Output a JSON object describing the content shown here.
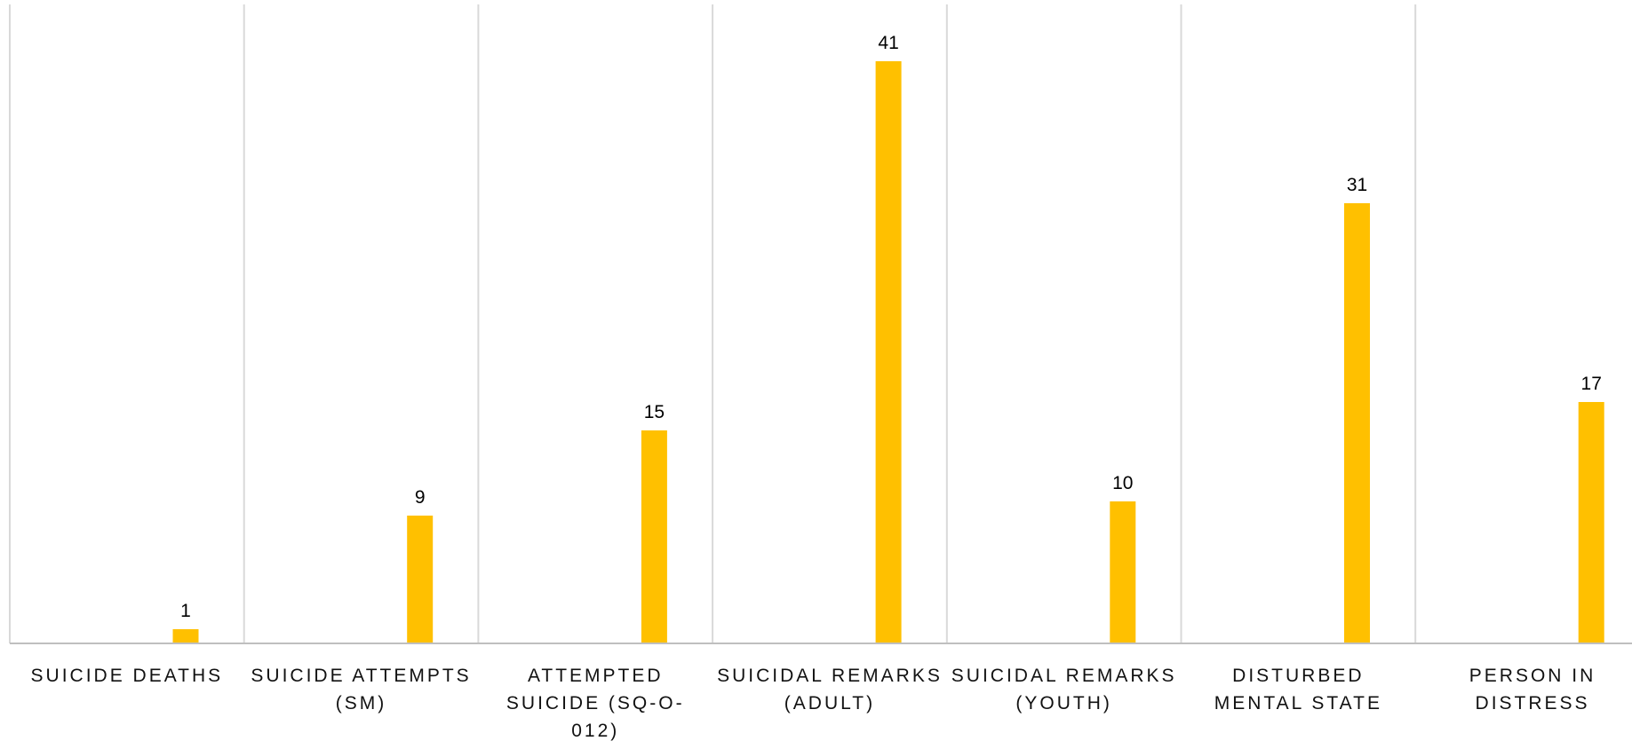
{
  "chart_data": {
    "type": "bar",
    "categories": [
      [
        "SUICIDE DEATHS"
      ],
      [
        "SUICIDE ATTEMPTS",
        "(SM)"
      ],
      [
        "ATTEMPTED",
        "SUICIDE (SQ-O-",
        "012)"
      ],
      [
        "SUICIDAL REMARKS",
        "(ADULT)"
      ],
      [
        "SUICIDAL REMARKS",
        "(YOUTH)"
      ],
      [
        "DISTURBED",
        "MENTAL STATE"
      ],
      [
        "PERSON IN",
        "DISTRESS"
      ]
    ],
    "values": [
      1,
      9,
      15,
      41,
      10,
      31,
      17
    ],
    "data_labels": [
      "1",
      "9",
      "15",
      "41",
      "10",
      "31",
      "17"
    ],
    "title": "",
    "xlabel": "",
    "ylabel": "",
    "ylim": [
      0,
      45
    ],
    "grid": "vertical category separators",
    "legend": "none",
    "bar_color": "#FFC000",
    "gridline_color": "#D9D9D9",
    "axis_color": "#BFBFBF"
  }
}
